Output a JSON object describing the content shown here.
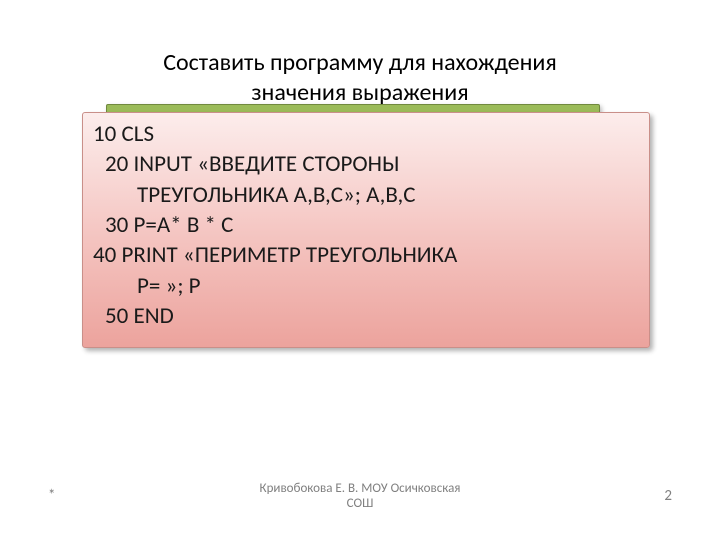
{
  "title": {
    "line1": "Составить программу для нахождения",
    "line2": "значения выражения"
  },
  "code": {
    "l1": "10  CLS",
    "l2": " 20 INPUT «ВВЕДИТЕ  СТОРОНЫ",
    "l3": "ТРЕУГОЛЬНИКА  А,B,C»; A,B,C",
    "l4": " 30  P=A* B * C",
    "l5": "40   PRINT «ПЕРИМЕТР ТРЕУГОЛЬНИКА",
    "l6": "P= »; P",
    "l7": " 50 END"
  },
  "footer": {
    "date": "*",
    "author_l1": "Кривобокова Е. В. МОУ Осичковская",
    "author_l2": "СОШ",
    "page": "2"
  },
  "colors": {
    "green": "#9bbb59",
    "green_border": "#71893f",
    "grad_top": "#fcedec",
    "grad_mid": "#f4c3bf",
    "grad_bot": "#eca39d",
    "text": "#000000",
    "footer_text": "#808080"
  }
}
